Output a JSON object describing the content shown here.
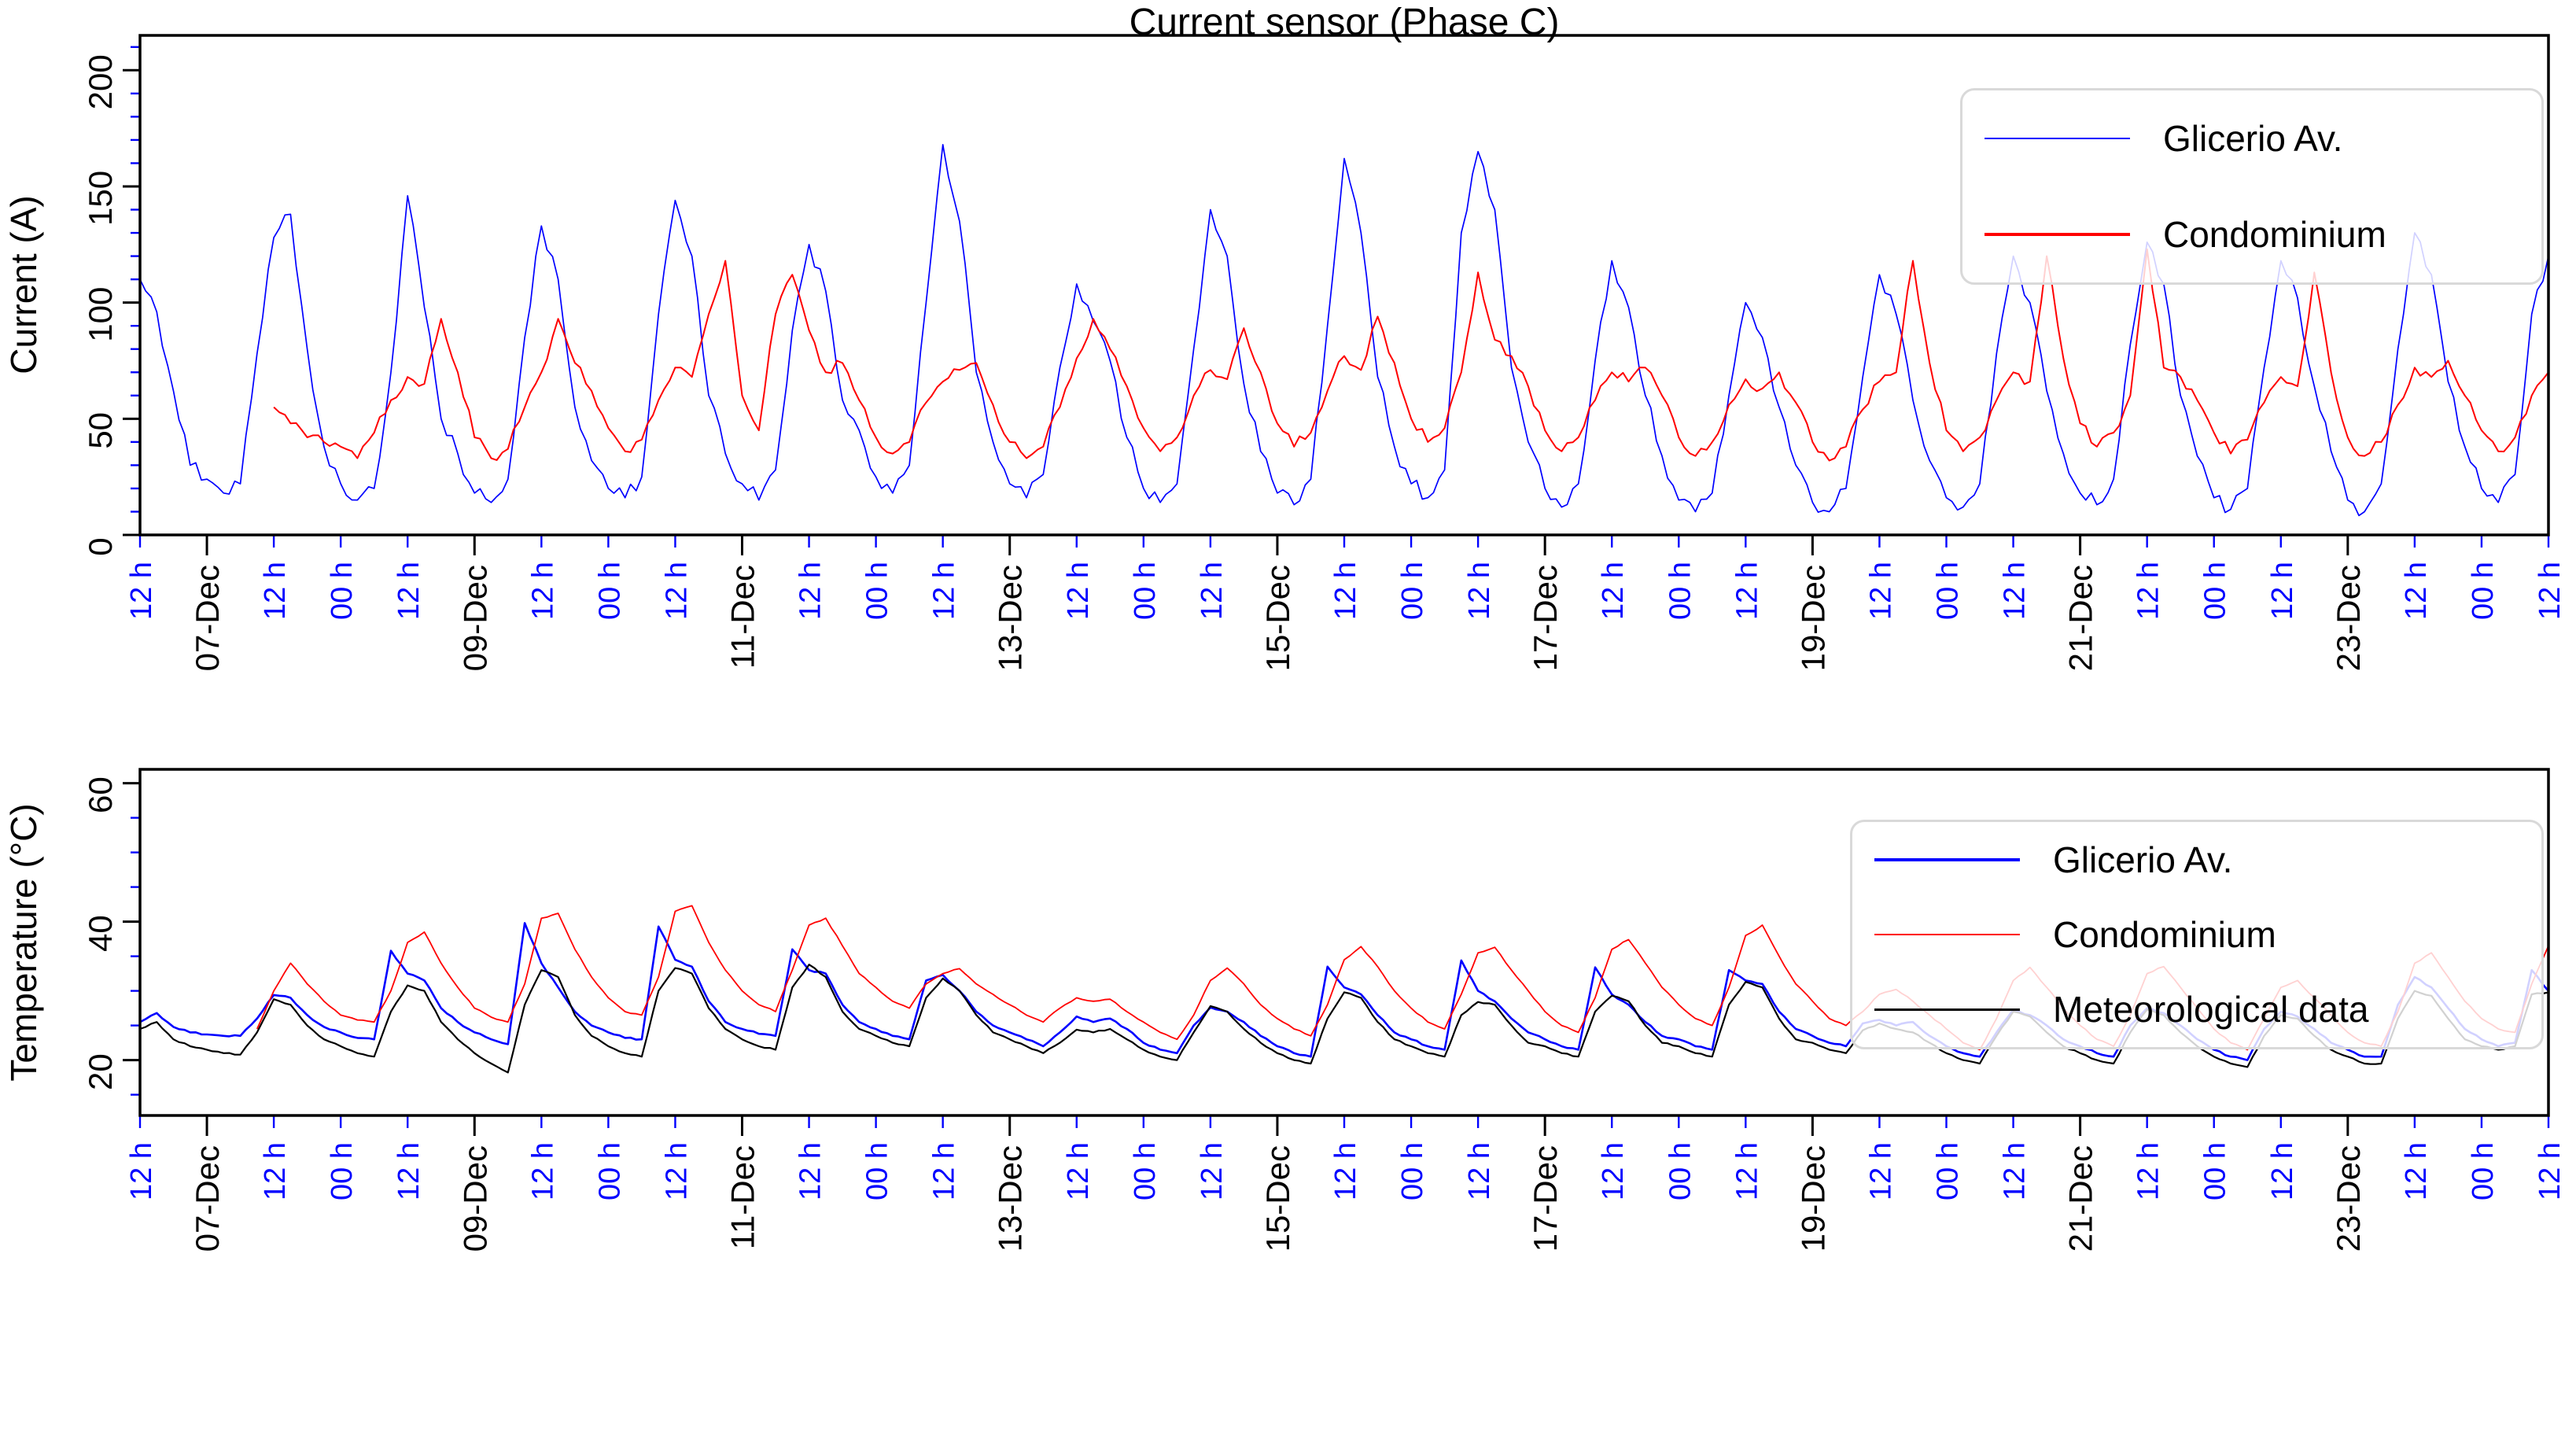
{
  "figure_title": "Current sensor (Phase C)",
  "accent_colors": {
    "series_blue": "#0000ff",
    "series_red": "#ff0000",
    "series_black": "#000000",
    "minor_tick_blue": "#0000ff"
  },
  "x_axis": {
    "start": "06-Dec 12:00",
    "end": "24-Dec 12:00",
    "hours_span": 432,
    "sample_step_hours": 3,
    "ticks": [
      {
        "t": 0,
        "label": "12 h",
        "major": false
      },
      {
        "t": 12,
        "label": "07-Dec",
        "major": true
      },
      {
        "t": 24,
        "label": "12 h",
        "major": false
      },
      {
        "t": 36,
        "label": "00 h",
        "major": false
      },
      {
        "t": 48,
        "label": "12 h",
        "major": false
      },
      {
        "t": 60,
        "label": "09-Dec",
        "major": true
      },
      {
        "t": 72,
        "label": "12 h",
        "major": false
      },
      {
        "t": 84,
        "label": "00 h",
        "major": false
      },
      {
        "t": 96,
        "label": "12 h",
        "major": false
      },
      {
        "t": 108,
        "label": "11-Dec",
        "major": true
      },
      {
        "t": 120,
        "label": "12 h",
        "major": false
      },
      {
        "t": 132,
        "label": "00 h",
        "major": false
      },
      {
        "t": 144,
        "label": "12 h",
        "major": false
      },
      {
        "t": 156,
        "label": "13-Dec",
        "major": true
      },
      {
        "t": 168,
        "label": "12 h",
        "major": false
      },
      {
        "t": 180,
        "label": "00 h",
        "major": false
      },
      {
        "t": 192,
        "label": "12 h",
        "major": false
      },
      {
        "t": 204,
        "label": "15-Dec",
        "major": true
      },
      {
        "t": 216,
        "label": "12 h",
        "major": false
      },
      {
        "t": 228,
        "label": "00 h",
        "major": false
      },
      {
        "t": 240,
        "label": "12 h",
        "major": false
      },
      {
        "t": 252,
        "label": "17-Dec",
        "major": true
      },
      {
        "t": 264,
        "label": "12 h",
        "major": false
      },
      {
        "t": 276,
        "label": "00 h",
        "major": false
      },
      {
        "t": 288,
        "label": "12 h",
        "major": false
      },
      {
        "t": 300,
        "label": "19-Dec",
        "major": true
      },
      {
        "t": 312,
        "label": "12 h",
        "major": false
      },
      {
        "t": 324,
        "label": "00 h",
        "major": false
      },
      {
        "t": 336,
        "label": "12 h",
        "major": false
      },
      {
        "t": 348,
        "label": "21-Dec",
        "major": true
      },
      {
        "t": 360,
        "label": "12 h",
        "major": false
      },
      {
        "t": 372,
        "label": "00 h",
        "major": false
      },
      {
        "t": 384,
        "label": "12 h",
        "major": false
      },
      {
        "t": 396,
        "label": "23-Dec",
        "major": true
      },
      {
        "t": 408,
        "label": "12 h",
        "major": false
      },
      {
        "t": 420,
        "label": "00 h",
        "major": false
      },
      {
        "t": 432,
        "label": "12 h",
        "major": false
      }
    ]
  },
  "chart_data": [
    {
      "type": "line",
      "title": "Current sensor (Phase C)",
      "ylabel": "Current (A)",
      "yticks": [
        0,
        50,
        100,
        150,
        200
      ],
      "y_minor_step": 10,
      "ylim": [
        0,
        215
      ],
      "grid": false,
      "legend_position": "upper right",
      "series": [
        {
          "name": "Glicerio Av.",
          "color": "#0000ff",
          "values": [
            110,
            96,
            62,
            30,
            24,
            18,
            22,
            78,
            128,
            138,
            80,
            38,
            22,
            15,
            20,
            70,
            146,
            98,
            50,
            35,
            18,
            14,
            24,
            85,
            133,
            110,
            55,
            32,
            20,
            16,
            25,
            95,
            144,
            120,
            60,
            35,
            22,
            15,
            28,
            88,
            125,
            105,
            58,
            45,
            25,
            18,
            30,
            100,
            168,
            135,
            70,
            40,
            22,
            16,
            26,
            72,
            108,
            92,
            75,
            42,
            20,
            14,
            22,
            80,
            140,
            120,
            65,
            36,
            18,
            13,
            24,
            90,
            162,
            130,
            68,
            38,
            22,
            16,
            28,
            130,
            165,
            140,
            72,
            40,
            20,
            12,
            22,
            75,
            118,
            98,
            60,
            34,
            15,
            10,
            18,
            60,
            100,
            85,
            55,
            30,
            14,
            10,
            20,
            68,
            112,
            95,
            58,
            32,
            16,
            12,
            22,
            78,
            120,
            100,
            62,
            35,
            18,
            13,
            24,
            82,
            126,
            108,
            60,
            34,
            16,
            11,
            20,
            72,
            118,
            102,
            64,
            36,
            15,
            10,
            22,
            80,
            130,
            112,
            66,
            38,
            20,
            14,
            26,
            95,
            120
          ]
        },
        {
          "name": "Condominium",
          "color": "#ff0000",
          "values": [
            null,
            null,
            null,
            null,
            null,
            null,
            null,
            null,
            55,
            48,
            42,
            40,
            38,
            33,
            44,
            58,
            68,
            65,
            93,
            70,
            42,
            33,
            37,
            55,
            70,
            93,
            74,
            62,
            46,
            36,
            41,
            58,
            72,
            68,
            95,
            118,
            60,
            45,
            95,
            112,
            88,
            70,
            74,
            58,
            42,
            35,
            40,
            57,
            66,
            71,
            74,
            56,
            40,
            33,
            38,
            55,
            76,
            93,
            80,
            64,
            46,
            36,
            42,
            60,
            71,
            67,
            89,
            70,
            48,
            38,
            44,
            62,
            77,
            71,
            94,
            74,
            50,
            40,
            46,
            70,
            113,
            84,
            77,
            64,
            45,
            36,
            42,
            58,
            70,
            66,
            72,
            60,
            42,
            34,
            40,
            56,
            67,
            63,
            70,
            57,
            40,
            32,
            38,
            54,
            66,
            70,
            118,
            74,
            45,
            36,
            42,
            58,
            70,
            66,
            120,
            76,
            48,
            38,
            44,
            60,
            123,
            72,
            68,
            58,
            44,
            35,
            41,
            57,
            68,
            64,
            113,
            70,
            42,
            34,
            40,
            56,
            72,
            68,
            75,
            60,
            45,
            36,
            42,
            60,
            70
          ]
        }
      ]
    },
    {
      "type": "line",
      "title": "",
      "ylabel": "Temperature (°C)",
      "yticks": [
        20,
        40,
        60
      ],
      "y_minor_step": 5,
      "ylim": [
        12,
        62
      ],
      "grid": false,
      "legend_position": "upper right",
      "series": [
        {
          "name": "Glicerio Av.",
          "color": "#0000ff",
          "values": [
            25.5,
            26.8,
            24.8,
            24,
            23.7,
            23.5,
            23.5,
            26,
            29.4,
            29,
            26.5,
            24.8,
            24,
            23.2,
            23,
            35.8,
            32.5,
            31.5,
            27.5,
            25.5,
            24,
            23,
            22.3,
            39.8,
            34,
            30.5,
            27,
            25,
            24,
            23.2,
            23,
            39.3,
            34.5,
            33.5,
            28.5,
            25.5,
            24.5,
            23.8,
            23.5,
            36,
            33,
            32.5,
            28,
            25.5,
            24.5,
            23.5,
            23,
            31.5,
            32.3,
            30,
            27,
            25,
            24,
            23,
            22,
            24,
            26.3,
            25.5,
            26,
            24.5,
            22.5,
            21.5,
            21,
            25,
            27.6,
            27,
            25.5,
            23.5,
            22,
            21,
            20.5,
            33.5,
            30.5,
            29.5,
            26.5,
            24,
            23,
            22,
            21.5,
            34.4,
            30,
            28.5,
            26,
            24,
            23,
            22,
            21.5,
            33.4,
            29.5,
            28,
            25.5,
            23.5,
            23,
            22,
            21.5,
            33,
            31.5,
            31,
            27,
            24.5,
            23.5,
            22.5,
            22,
            25.3,
            25.8,
            25,
            25.5,
            23.5,
            22,
            21,
            20.5,
            24,
            27.3,
            26.5,
            25,
            23,
            22,
            21,
            20.5,
            25,
            27.5,
            26.8,
            25,
            23,
            21.5,
            20.5,
            20,
            24.5,
            27,
            26.3,
            24.5,
            22.5,
            21.5,
            20.5,
            20.5,
            28,
            32,
            30.5,
            27.5,
            24.5,
            23,
            22,
            22.5,
            33,
            30
          ]
        },
        {
          "name": "Condominium",
          "color": "#ff0000",
          "values": [
            null,
            null,
            null,
            null,
            null,
            null,
            null,
            24.5,
            30,
            34,
            31,
            28.5,
            26.5,
            25.8,
            25.5,
            30,
            37,
            38.5,
            34,
            30.5,
            27.5,
            26.2,
            25.5,
            31,
            40.5,
            41.2,
            36,
            32,
            29,
            27,
            26.5,
            32,
            41.5,
            42.3,
            37,
            33,
            30,
            28,
            27,
            33,
            39.5,
            40.5,
            36.5,
            32.5,
            30.5,
            28.5,
            27.5,
            31,
            32.5,
            33.2,
            31,
            29.5,
            28,
            26.5,
            25.5,
            27.5,
            29,
            28.5,
            28.8,
            27,
            25.5,
            24,
            23,
            26.5,
            31.5,
            33.3,
            31,
            28,
            26,
            24.5,
            23.5,
            28,
            34.5,
            36.4,
            33.5,
            30,
            27.5,
            25.5,
            24.5,
            29.5,
            35.5,
            36.3,
            33,
            30,
            27,
            25,
            24,
            29,
            36,
            37.4,
            34,
            30.5,
            28,
            26,
            25,
            30.5,
            38,
            39.5,
            35,
            31,
            28.5,
            26,
            25,
            27,
            29.5,
            30.2,
            28.5,
            26.5,
            24.5,
            22.5,
            21.5,
            26,
            31.5,
            33.4,
            30.5,
            27.5,
            25,
            23,
            22,
            26.5,
            32.5,
            33.5,
            30.5,
            27.5,
            24.5,
            22.5,
            21.5,
            26,
            30.5,
            31.5,
            29,
            26.5,
            24,
            22.5,
            22,
            27,
            34,
            35.5,
            32,
            28.5,
            26,
            24.5,
            24,
            31,
            36.5
          ]
        },
        {
          "name": "Meteorological data",
          "color": "#000000",
          "values": [
            24.5,
            25.5,
            23,
            22,
            21.5,
            21,
            20.8,
            24,
            28.8,
            28,
            25,
            23,
            22,
            21,
            20.5,
            27,
            30.8,
            30,
            25.5,
            23,
            21,
            19.5,
            18.2,
            28,
            33,
            32,
            26.5,
            23.5,
            22,
            21,
            20.5,
            30,
            33.3,
            32.5,
            27.5,
            24.5,
            23,
            22,
            21.5,
            30.5,
            33.8,
            32,
            27,
            24.5,
            23.5,
            22.5,
            22,
            29,
            31.8,
            30,
            26.5,
            24,
            23,
            22,
            21,
            22.5,
            24.4,
            24,
            24.5,
            23,
            21.5,
            20.5,
            20,
            24,
            27.8,
            27,
            24.5,
            22.5,
            21,
            20,
            19.5,
            26,
            29.8,
            29,
            25.5,
            23,
            22,
            21,
            20.5,
            26.5,
            28.4,
            28,
            25,
            22.5,
            22,
            21,
            20.5,
            27,
            29.3,
            28.5,
            25,
            22.5,
            22,
            21,
            20.5,
            28,
            31.3,
            30.5,
            26,
            23,
            22.5,
            21.5,
            21,
            24.3,
            25.3,
            24.5,
            24,
            22.5,
            21,
            20,
            19.5,
            23.5,
            27,
            26.3,
            24,
            22,
            21,
            20,
            19.5,
            24,
            27.3,
            26.5,
            24,
            22,
            20.5,
            19.5,
            19,
            23.5,
            26.5,
            26,
            23.5,
            21.5,
            20.5,
            19.5,
            19.5,
            26,
            30,
            29.3,
            26,
            23,
            22,
            21.5,
            22,
            29.5,
            29.8
          ]
        }
      ]
    }
  ]
}
